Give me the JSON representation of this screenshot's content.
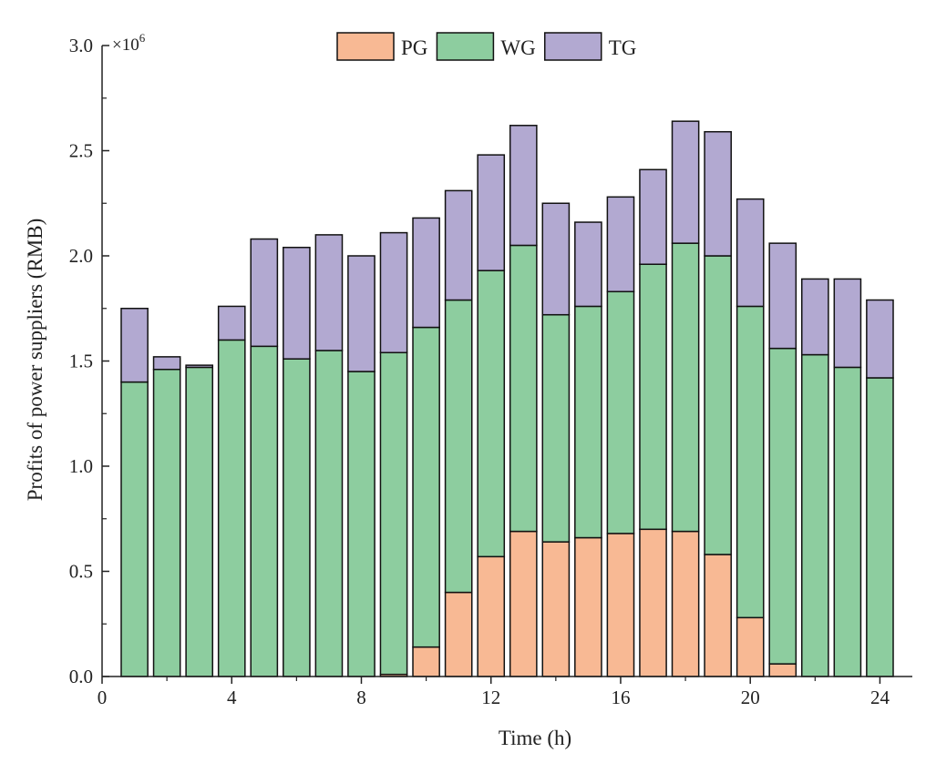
{
  "chart_data": {
    "type": "bar",
    "stacked": true,
    "title": "",
    "xlabel": "Time (h)",
    "ylabel": "Profits of power suppliers (RMB)",
    "y_multiplier_label": "×10",
    "y_multiplier_exponent": "6",
    "x": [
      1,
      2,
      3,
      4,
      5,
      6,
      7,
      8,
      9,
      10,
      11,
      12,
      13,
      14,
      15,
      16,
      17,
      18,
      19,
      20,
      21,
      22,
      23,
      24
    ],
    "xlim": [
      0,
      25
    ],
    "ylim": [
      0,
      3.0
    ],
    "x_ticks": [
      0,
      4,
      8,
      12,
      16,
      20,
      24
    ],
    "x_tick_labels": [
      "0",
      "4",
      "8",
      "12",
      "16",
      "20",
      "24"
    ],
    "y_ticks": [
      0,
      0.5,
      1.0,
      1.5,
      2.0,
      2.5,
      3.0
    ],
    "y_tick_labels": [
      "0.0",
      "0.5",
      "1.0",
      "1.5",
      "2.0",
      "2.5",
      "3.0"
    ],
    "grid": false,
    "legend_position": "top-center",
    "series": [
      {
        "name": "PG",
        "color": "#f8b994",
        "values": [
          0,
          0,
          0,
          0,
          0,
          0,
          0,
          0,
          0.01,
          0.14,
          0.4,
          0.57,
          0.69,
          0.64,
          0.66,
          0.68,
          0.7,
          0.69,
          0.58,
          0.28,
          0.06,
          0,
          0,
          0
        ]
      },
      {
        "name": "WG",
        "color": "#8dcd9f",
        "values": [
          1.4,
          1.46,
          1.47,
          1.6,
          1.57,
          1.51,
          1.55,
          1.45,
          1.53,
          1.52,
          1.39,
          1.36,
          1.36,
          1.08,
          1.1,
          1.15,
          1.26,
          1.37,
          1.42,
          1.48,
          1.5,
          1.53,
          1.47,
          1.42
        ]
      },
      {
        "name": "TG",
        "color": "#b2a9d1",
        "values": [
          0.35,
          0.06,
          0.01,
          0.16,
          0.51,
          0.53,
          0.55,
          0.55,
          0.57,
          0.52,
          0.52,
          0.55,
          0.57,
          0.53,
          0.4,
          0.45,
          0.45,
          0.58,
          0.59,
          0.51,
          0.5,
          0.36,
          0.42,
          0.37
        ]
      }
    ]
  }
}
